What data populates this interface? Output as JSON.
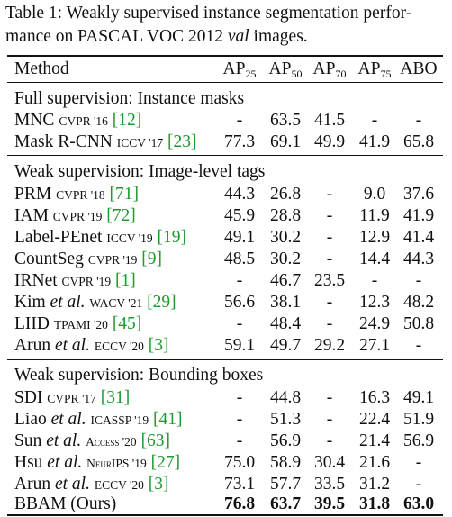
{
  "caption": {
    "label": "Table 1:",
    "text_a": " Weakly supervised instance segmentation perfor-",
    "text_b": "mance on PASCAL VOC 2012 ",
    "text_c": "val",
    "text_d": " images."
  },
  "header": {
    "method": "Method",
    "ap25": "AP",
    "ap25_sub": "25",
    "ap50": "AP",
    "ap50_sub": "50",
    "ap70": "AP",
    "ap70_sub": "70",
    "ap75": "AP",
    "ap75_sub": "75",
    "abo": "ABO"
  },
  "sections": [
    {
      "title": "Full supervision: Instance masks"
    },
    {
      "title": "Weak supervision: Image-level tags"
    },
    {
      "title": "Weak supervision: Bounding boxes"
    }
  ],
  "rows": {
    "mnc": {
      "name": "MNC",
      "venue": "CVPR '16",
      "cite": "[12]",
      "v": [
        "-",
        "63.5",
        "41.5",
        "-",
        "-"
      ]
    },
    "maskrcnn": {
      "name": "Mask R-CNN",
      "venue": "ICCV '17",
      "cite": "[23]",
      "v": [
        "77.3",
        "69.1",
        "49.9",
        "41.9",
        "65.8"
      ]
    },
    "prm": {
      "name": "PRM",
      "venue": "CVPR '18",
      "cite": "[71]",
      "v": [
        "44.3",
        "26.8",
        "-",
        "9.0",
        "37.6"
      ]
    },
    "iam": {
      "name": "IAM",
      "venue": "CVPR '19",
      "cite": "[72]",
      "v": [
        "45.9",
        "28.8",
        "-",
        "11.9",
        "41.9"
      ]
    },
    "labelpenet": {
      "name": "Label-PEnet",
      "venue": "ICCV '19",
      "cite": "[19]",
      "v": [
        "49.1",
        "30.2",
        "-",
        "12.9",
        "41.4"
      ]
    },
    "countseg": {
      "name": "CountSeg",
      "venue": "CVPR '19",
      "cite": "[9]",
      "v": [
        "48.5",
        "30.2",
        "-",
        "14.4",
        "44.3"
      ]
    },
    "irnet": {
      "name": "IRNet",
      "venue": "CVPR '19",
      "cite": "[1]",
      "v": [
        "-",
        "46.7",
        "23.5",
        "-",
        "-"
      ]
    },
    "kim": {
      "name": "Kim",
      "etal": " et al.",
      "venue": "WACV '21",
      "cite": "[29]",
      "v": [
        "56.6",
        "38.1",
        "-",
        "12.3",
        "48.2"
      ]
    },
    "liid": {
      "name": "LIID",
      "venue": "TPAMI '20",
      "cite": "[45]",
      "v": [
        "-",
        "48.4",
        "-",
        "24.9",
        "50.8"
      ]
    },
    "arun1": {
      "name": "Arun",
      "etal": " et al.",
      "venue": "ECCV '20",
      "cite": "[3]",
      "v": [
        "59.1",
        "49.7",
        "29.2",
        "27.1",
        "-"
      ]
    },
    "sdi": {
      "name": "SDI",
      "venue": "CVPR '17",
      "cite": "[31]",
      "v": [
        "-",
        "44.8",
        "-",
        "16.3",
        "49.1"
      ]
    },
    "liao": {
      "name": "Liao",
      "etal": " et al.",
      "venue": "ICASSP '19",
      "cite": "[41]",
      "v": [
        "-",
        "51.3",
        "-",
        "22.4",
        "51.9"
      ]
    },
    "sun": {
      "name": "Sun",
      "etal": " et al.",
      "venue": "Access '20",
      "cite": "[63]",
      "v": [
        "-",
        "56.9",
        "-",
        "21.4",
        "56.9"
      ]
    },
    "hsu": {
      "name": "Hsu",
      "etal": " et al.",
      "venue": "NeurIPS '19",
      "cite": "[27]",
      "v": [
        "75.0",
        "58.9",
        "30.4",
        "21.6",
        "-"
      ]
    },
    "arun2": {
      "name": "Arun",
      "etal": " et al.",
      "venue": "ECCV '20",
      "cite": "[3]",
      "v": [
        "73.1",
        "57.7",
        "33.5",
        "31.2",
        "-"
      ]
    },
    "bbam": {
      "name": "BBAM (Ours)",
      "v": [
        "76.8",
        "63.7",
        "39.5",
        "31.8",
        "63.0"
      ]
    }
  }
}
